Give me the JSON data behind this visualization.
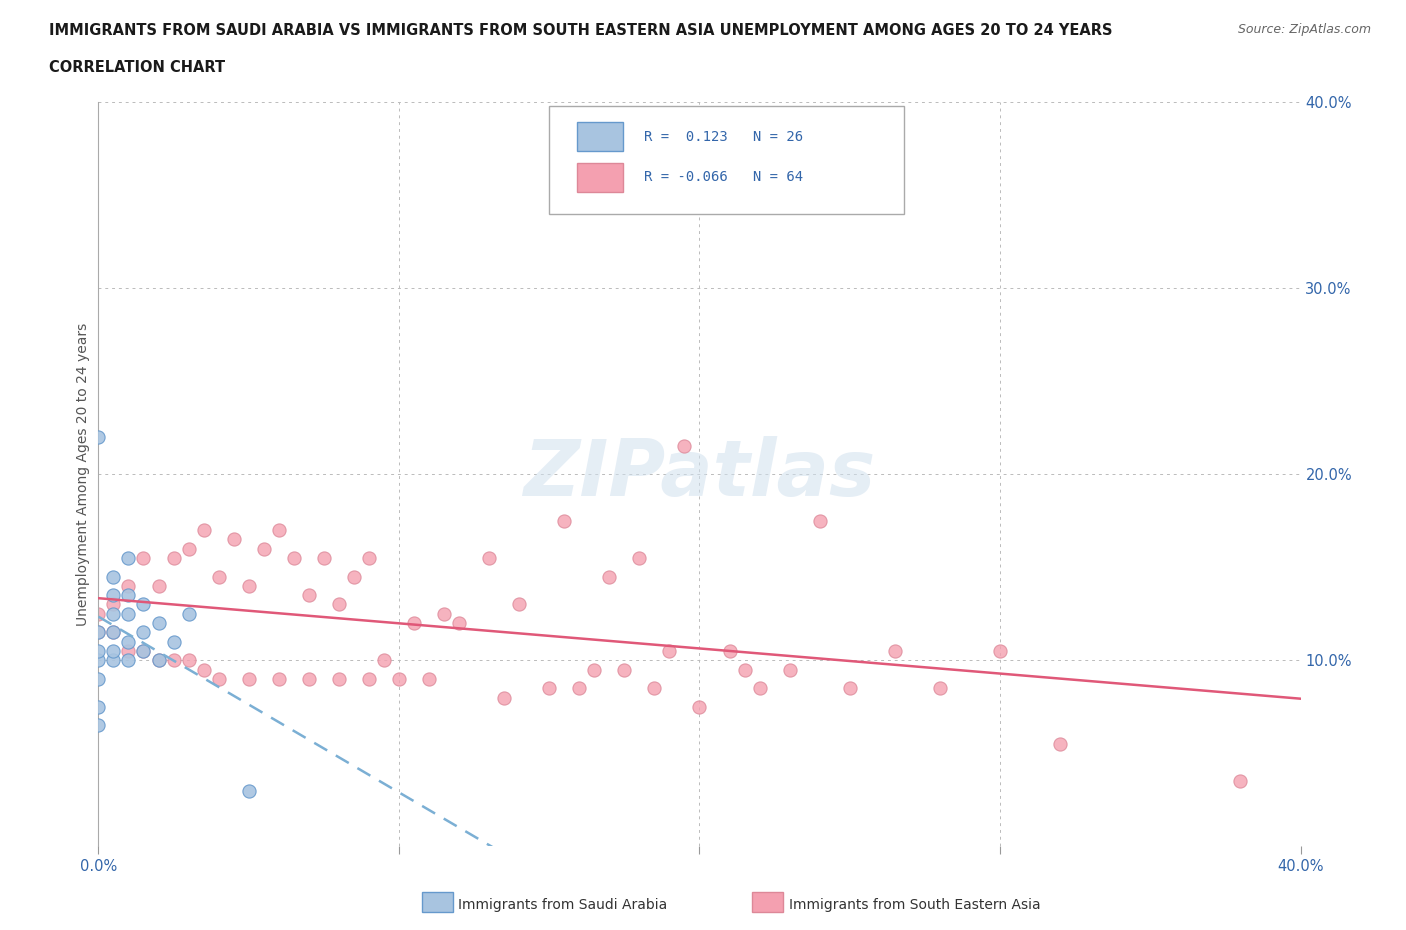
{
  "title_line1": "IMMIGRANTS FROM SAUDI ARABIA VS IMMIGRANTS FROM SOUTH EASTERN ASIA UNEMPLOYMENT AMONG AGES 20 TO 24 YEARS",
  "title_line2": "CORRELATION CHART",
  "source": "Source: ZipAtlas.com",
  "ylabel": "Unemployment Among Ages 20 to 24 years",
  "xmin": 0.0,
  "xmax": 0.4,
  "ymin": 0.0,
  "ymax": 0.4,
  "r_saudi": 0.123,
  "n_saudi": 26,
  "r_sea": -0.066,
  "n_sea": 64,
  "legend_label1": "Immigrants from Saudi Arabia",
  "legend_label2": "Immigrants from South Eastern Asia",
  "color_saudi": "#a8c4e0",
  "color_sea": "#f4a0b0",
  "trendline_saudi_color": "#7bafd4",
  "trendline_sea_color": "#e05878",
  "watermark": "ZIPatlas",
  "saudi_x": [
    0.0,
    0.0,
    0.0,
    0.0,
    0.0,
    0.0,
    0.0,
    0.005,
    0.005,
    0.005,
    0.005,
    0.005,
    0.005,
    0.01,
    0.01,
    0.01,
    0.01,
    0.01,
    0.015,
    0.015,
    0.015,
    0.02,
    0.02,
    0.025,
    0.03,
    0.05
  ],
  "saudi_y": [
    0.065,
    0.075,
    0.09,
    0.1,
    0.105,
    0.115,
    0.22,
    0.1,
    0.105,
    0.115,
    0.125,
    0.135,
    0.145,
    0.1,
    0.11,
    0.125,
    0.135,
    0.155,
    0.105,
    0.115,
    0.13,
    0.1,
    0.12,
    0.11,
    0.125,
    0.03
  ],
  "sea_x": [
    0.0,
    0.0,
    0.005,
    0.005,
    0.01,
    0.01,
    0.015,
    0.015,
    0.02,
    0.02,
    0.025,
    0.025,
    0.03,
    0.03,
    0.035,
    0.035,
    0.04,
    0.04,
    0.045,
    0.05,
    0.05,
    0.055,
    0.06,
    0.06,
    0.065,
    0.07,
    0.07,
    0.075,
    0.08,
    0.08,
    0.085,
    0.09,
    0.09,
    0.095,
    0.1,
    0.105,
    0.11,
    0.115,
    0.12,
    0.13,
    0.135,
    0.14,
    0.15,
    0.155,
    0.16,
    0.165,
    0.17,
    0.175,
    0.18,
    0.185,
    0.19,
    0.195,
    0.2,
    0.21,
    0.215,
    0.22,
    0.23,
    0.24,
    0.25,
    0.265,
    0.28,
    0.3,
    0.32,
    0.38
  ],
  "sea_y": [
    0.115,
    0.125,
    0.115,
    0.13,
    0.105,
    0.14,
    0.105,
    0.155,
    0.1,
    0.14,
    0.1,
    0.155,
    0.1,
    0.16,
    0.095,
    0.17,
    0.09,
    0.145,
    0.165,
    0.09,
    0.14,
    0.16,
    0.09,
    0.17,
    0.155,
    0.09,
    0.135,
    0.155,
    0.09,
    0.13,
    0.145,
    0.09,
    0.155,
    0.1,
    0.09,
    0.12,
    0.09,
    0.125,
    0.12,
    0.155,
    0.08,
    0.13,
    0.085,
    0.175,
    0.085,
    0.095,
    0.145,
    0.095,
    0.155,
    0.085,
    0.105,
    0.215,
    0.075,
    0.105,
    0.095,
    0.085,
    0.095,
    0.175,
    0.085,
    0.105,
    0.085,
    0.105,
    0.055,
    0.035
  ]
}
